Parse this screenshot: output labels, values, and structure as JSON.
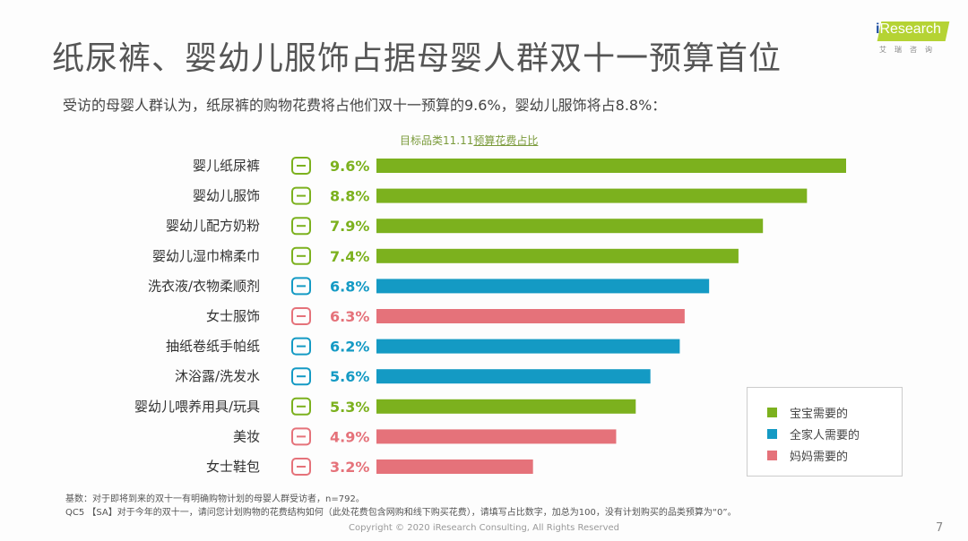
{
  "header": {
    "title": "纸尿裤、婴幼儿服饰占据母婴人群双十一预算首位",
    "subtitle": "受访的母婴人群认为，纸尿裤的购物花费将占他们双十一预算的9.6%，婴幼儿服饰将占8.8%：",
    "logo": {
      "brand": "iResearch",
      "brand_sub": "艾瑞咨询"
    }
  },
  "chart_data": {
    "type": "bar",
    "orientation": "horizontal",
    "title_prefix": "目标品类11.11",
    "title_underlined": "预算花费占比",
    "categories": [
      "婴儿纸尿裤",
      "婴幼儿服饰",
      "婴幼儿配方奶粉",
      "婴幼儿湿巾棉柔巾",
      "洗衣液/衣物柔顺剂",
      "女士服饰",
      "抽纸卷纸手帕纸",
      "沐浴露/洗发水",
      "婴幼儿喂养用具/玩具",
      "美妆",
      "女士鞋包"
    ],
    "values": [
      9.6,
      8.8,
      7.9,
      7.4,
      6.8,
      6.3,
      6.2,
      5.6,
      5.3,
      4.9,
      3.2
    ],
    "value_labels": [
      "9.6%",
      "8.8%",
      "7.9%",
      "7.4%",
      "6.8%",
      "6.3%",
      "6.2%",
      "5.6%",
      "5.3%",
      "4.9%",
      "3.2%"
    ],
    "groups": [
      "baby",
      "baby",
      "baby",
      "baby",
      "family",
      "mom",
      "family",
      "family",
      "baby",
      "mom",
      "mom"
    ],
    "icons": [
      "diaper-icon",
      "baby-clothes-icon",
      "formula-jar-icon",
      "wipes-layers-icon",
      "detergent-icon",
      "dress-icon",
      "tissue-icon",
      "shampoo-bottle-icon",
      "baby-mobile-icon",
      "lipstick-icon",
      "high-heel-icon"
    ],
    "unit": "%",
    "legend": [
      {
        "key": "baby",
        "label": "宝宝需要的",
        "color": "#7cb11e"
      },
      {
        "key": "family",
        "label": "全家人需要的",
        "color": "#149ac4"
      },
      {
        "key": "mom",
        "label": "妈妈需要的",
        "color": "#e5727a"
      }
    ],
    "legend_position": "bottom-right",
    "grid": false
  },
  "footer": {
    "note1": "基数：对于即将到来的双十一有明确购物计划的母婴人群受访者，n=792。",
    "note2": "QC5  【SA】对于今年的双十一，请问您计划购物的花费结构如何（此处花费包含网购和线下购买花费），请填写占比数字，加总为100，没有计划购买的品类预算为“0”。",
    "copyright": "Copyright © 2020 iResearch Consulting, All Rights Reserved",
    "page": "7"
  }
}
